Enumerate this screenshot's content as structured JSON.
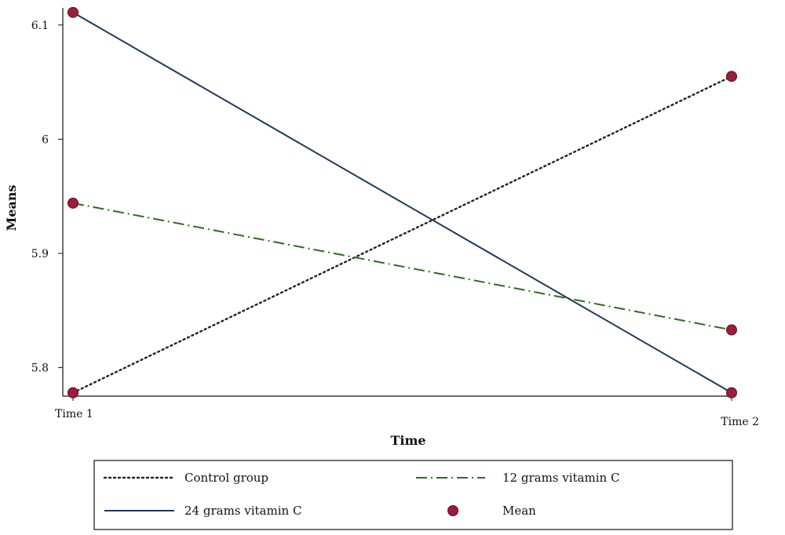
{
  "chart_data": {
    "type": "line",
    "xlabel": "Time",
    "ylabel": "Means",
    "categories": [
      "Time 1",
      "Time 2"
    ],
    "ylim": [
      5.775,
      6.115
    ],
    "yticks": [
      5.8,
      5.9,
      6,
      6.1
    ],
    "ytick_labels": [
      "5.8",
      "5.9",
      "6",
      "6.1"
    ],
    "grid": false,
    "legend_position": "bottom",
    "series": [
      {
        "name": "Control group",
        "values": [
          5.778,
          6.055
        ],
        "color": "#222222",
        "style": "dotted"
      },
      {
        "name": "12 grams vitamin C",
        "values": [
          5.944,
          5.833
        ],
        "color": "#2e6b1f",
        "style": "dash-dot"
      },
      {
        "name": "24 grams vitamin C",
        "values": [
          6.111,
          5.778
        ],
        "color": "#1f3a5a",
        "style": "solid"
      }
    ],
    "marker": {
      "name": "Mean",
      "color": "#9b1c3c"
    }
  }
}
